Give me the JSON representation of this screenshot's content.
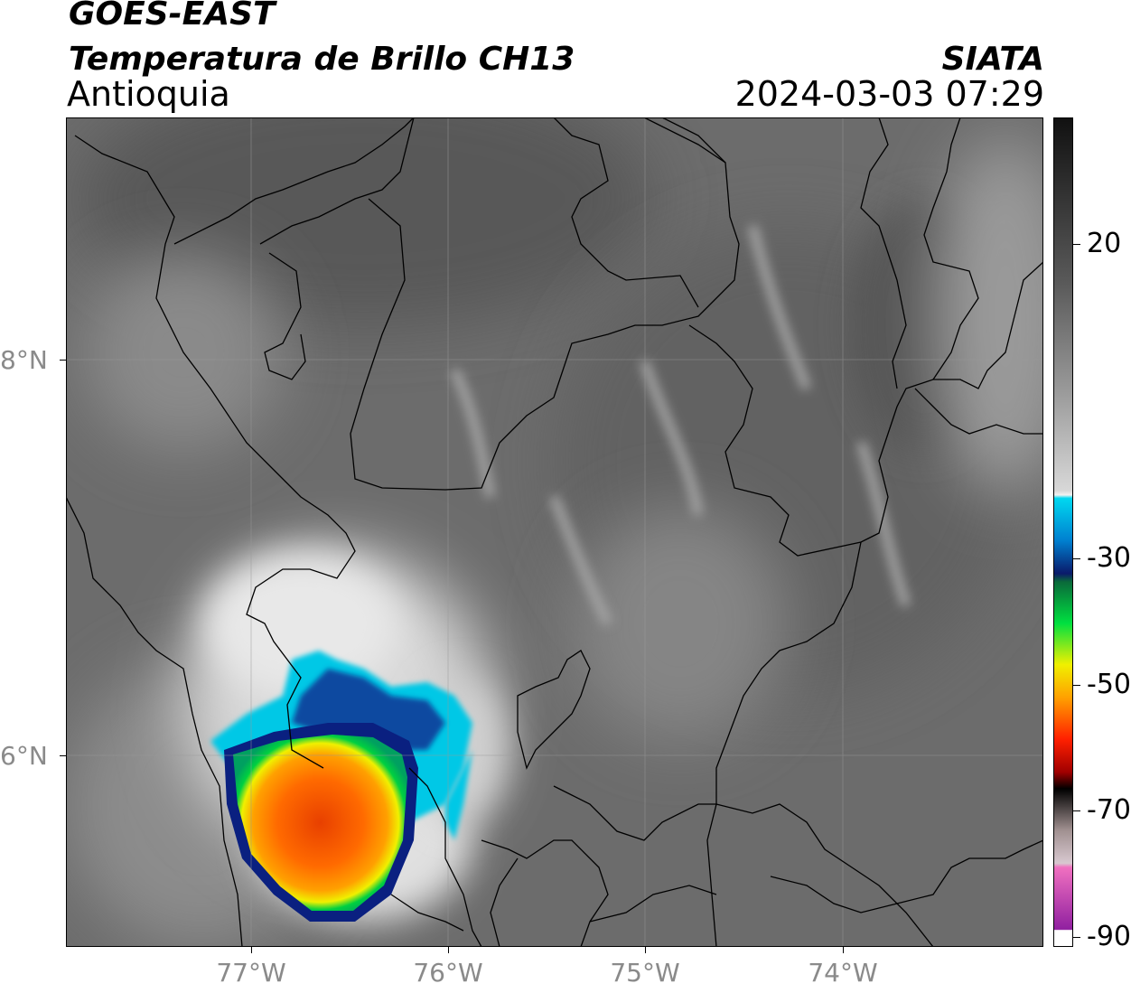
{
  "header": {
    "satellite": "GOES-EAST",
    "product": "Temperatura de Brillo CH13",
    "region": "Antioquia",
    "agency": "SIATA",
    "datetime": "2024-03-03 07:29"
  },
  "map": {
    "lat_ticks": [
      "8°N",
      "6°N"
    ],
    "lon_ticks": [
      "77°W",
      "76°W",
      "75°W",
      "74°W"
    ],
    "background_color": "#6e6e6e",
    "border_color": "#000000"
  },
  "colorbar": {
    "tick_labels": [
      "20",
      "-30",
      "-50",
      "-70",
      "-90"
    ],
    "colors": {
      "warm_dark": "#151515",
      "mid_gray": "#8c8c8c",
      "white": "#f4f4f4",
      "cyan": "#00d8f0",
      "blue": "#0050a0",
      "navy": "#0a1a6a",
      "green": "#00c040",
      "yellow": "#f0f000",
      "orange": "#ff8000",
      "red": "#e00000",
      "black": "#000000",
      "magenta": "#c030b0"
    }
  }
}
